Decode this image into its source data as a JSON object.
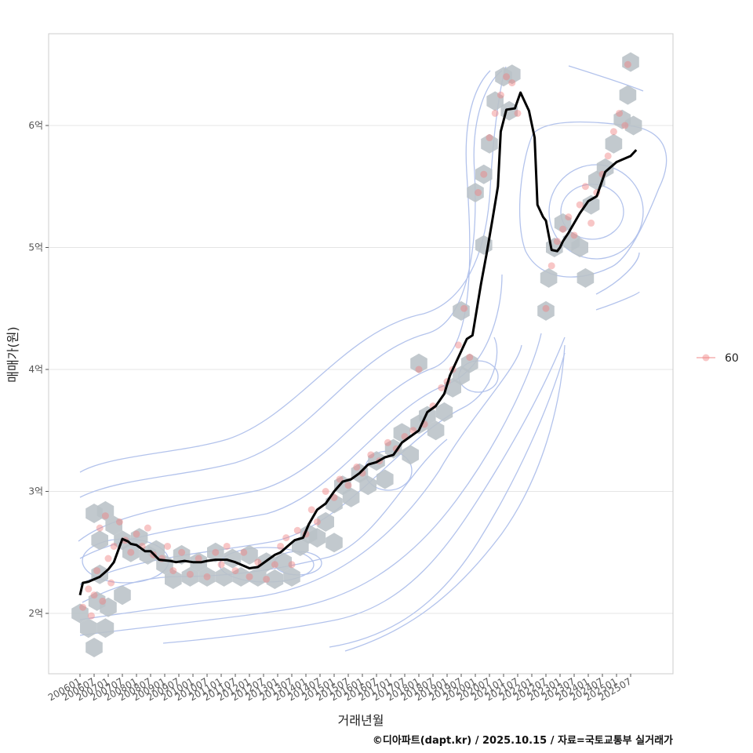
{
  "chart_data": {
    "type": "line",
    "title": "",
    "xlabel": "거래년월",
    "ylabel": "매매가(원)",
    "caption": "©디아파트(dapt.kr) / 2025.10.15 / 자료=국토교통부 실거래가",
    "legend": {
      "position": "right",
      "entries": [
        "60"
      ]
    },
    "x_ticks": [
      "200601",
      "200607",
      "200701",
      "200707",
      "200801",
      "200807",
      "200901",
      "200907",
      "201001",
      "201007",
      "201101",
      "201107",
      "201201",
      "201207",
      "201301",
      "201307",
      "201401",
      "201407",
      "201501",
      "201507",
      "201601",
      "201607",
      "201701",
      "201707",
      "201801",
      "201807",
      "201901",
      "201907",
      "202001",
      "202007",
      "202101",
      "202107",
      "202201",
      "202207",
      "202301",
      "202307",
      "202401",
      "202407",
      "202501",
      "202507"
    ],
    "y_ticks": [
      {
        "value": 2,
        "label": "2억"
      },
      {
        "value": 3,
        "label": "3억"
      },
      {
        "value": 4,
        "label": "4억"
      },
      {
        "value": 5,
        "label": "5억"
      },
      {
        "value": 6,
        "label": "6억"
      }
    ],
    "xlim": [
      2005.8,
      2027.6
    ],
    "ylim": [
      1.48,
      6.75
    ],
    "grid": true,
    "series": [
      {
        "name": "moving-average",
        "color": "#000000",
        "x": [
          2006.0,
          2006.1,
          2006.3,
          2006.5,
          2006.7,
          2007.0,
          2007.2,
          2007.5,
          2007.7,
          2007.8,
          2008.0,
          2008.3,
          2008.5,
          2008.8,
          2009.2,
          2009.4,
          2009.7,
          2010.0,
          2010.3,
          2010.5,
          2010.8,
          2011.2,
          2011.5,
          2011.8,
          2012.0,
          2012.3,
          2012.6,
          2012.9,
          2013.1,
          2013.4,
          2013.6,
          2013.9,
          2014.1,
          2014.4,
          2014.7,
          2015.0,
          2015.3,
          2015.6,
          2015.9,
          2016.2,
          2016.5,
          2016.8,
          2017.1,
          2017.4,
          2017.7,
          2018.0,
          2018.3,
          2018.6,
          2018.9,
          2019.1,
          2019.4,
          2019.7,
          2019.9,
          2020.2,
          2020.4,
          2020.6,
          2020.8,
          2020.9,
          2021.1,
          2021.4,
          2021.6,
          2021.9,
          2022.1,
          2022.2,
          2022.3,
          2022.4,
          2022.5,
          2022.7,
          2022.9,
          2023.0,
          2023.1,
          2023.3,
          2023.5,
          2023.7,
          2024.0,
          2024.3,
          2024.6,
          2024.8,
          2025.0,
          2025.2,
          2025.5,
          2025.7
        ],
        "values": [
          2.15,
          2.25,
          2.26,
          2.28,
          2.3,
          2.36,
          2.42,
          2.61,
          2.59,
          2.57,
          2.56,
          2.51,
          2.51,
          2.44,
          2.43,
          2.42,
          2.43,
          2.42,
          2.42,
          2.43,
          2.44,
          2.44,
          2.42,
          2.39,
          2.37,
          2.38,
          2.43,
          2.48,
          2.5,
          2.56,
          2.6,
          2.62,
          2.73,
          2.85,
          2.9,
          3.0,
          3.08,
          3.1,
          3.15,
          3.22,
          3.24,
          3.28,
          3.3,
          3.4,
          3.45,
          3.5,
          3.65,
          3.7,
          3.8,
          3.95,
          4.1,
          4.25,
          4.28,
          4.7,
          4.95,
          5.22,
          5.5,
          5.95,
          6.13,
          6.14,
          6.27,
          6.12,
          5.9,
          5.35,
          5.3,
          5.25,
          5.22,
          4.98,
          4.97,
          5.0,
          5.05,
          5.12,
          5.2,
          5.28,
          5.38,
          5.42,
          5.62,
          5.66,
          5.7,
          5.72,
          5.75,
          5.8
        ]
      }
    ],
    "scatter_60": [
      [
        2006.1,
        2.05
      ],
      [
        2006.3,
        2.2
      ],
      [
        2006.4,
        1.98
      ],
      [
        2006.5,
        2.15
      ],
      [
        2006.6,
        2.35
      ],
      [
        2006.7,
        2.7
      ],
      [
        2006.8,
        2.1
      ],
      [
        2006.9,
        2.8
      ],
      [
        2007.0,
        2.45
      ],
      [
        2007.1,
        2.25
      ],
      [
        2007.2,
        2.55
      ],
      [
        2007.4,
        2.75
      ],
      [
        2007.6,
        2.6
      ],
      [
        2007.8,
        2.5
      ],
      [
        2008.0,
        2.65
      ],
      [
        2008.2,
        2.55
      ],
      [
        2008.4,
        2.7
      ],
      [
        2008.6,
        2.48
      ],
      [
        2008.9,
        2.45
      ],
      [
        2009.1,
        2.55
      ],
      [
        2009.3,
        2.35
      ],
      [
        2009.6,
        2.5
      ],
      [
        2009.9,
        2.32
      ],
      [
        2010.2,
        2.45
      ],
      [
        2010.5,
        2.3
      ],
      [
        2010.8,
        2.5
      ],
      [
        2011.0,
        2.4
      ],
      [
        2011.2,
        2.55
      ],
      [
        2011.5,
        2.35
      ],
      [
        2011.8,
        2.5
      ],
      [
        2012.0,
        2.3
      ],
      [
        2012.3,
        2.42
      ],
      [
        2012.6,
        2.28
      ],
      [
        2012.9,
        2.4
      ],
      [
        2013.1,
        2.55
      ],
      [
        2013.3,
        2.62
      ],
      [
        2013.5,
        2.4
      ],
      [
        2013.7,
        2.68
      ],
      [
        2014.0,
        2.65
      ],
      [
        2014.2,
        2.85
      ],
      [
        2014.4,
        2.75
      ],
      [
        2014.7,
        3.0
      ],
      [
        2015.0,
        2.95
      ],
      [
        2015.2,
        3.1
      ],
      [
        2015.5,
        3.05
      ],
      [
        2015.8,
        3.2
      ],
      [
        2016.0,
        3.15
      ],
      [
        2016.3,
        3.3
      ],
      [
        2016.6,
        3.25
      ],
      [
        2016.9,
        3.4
      ],
      [
        2017.2,
        3.35
      ],
      [
        2017.5,
        3.45
      ],
      [
        2017.8,
        3.5
      ],
      [
        2018.0,
        4.0
      ],
      [
        2018.2,
        3.55
      ],
      [
        2018.5,
        3.7
      ],
      [
        2018.8,
        3.85
      ],
      [
        2019.0,
        3.9
      ],
      [
        2019.2,
        4.0
      ],
      [
        2019.4,
        4.2
      ],
      [
        2019.6,
        4.5
      ],
      [
        2019.8,
        4.1
      ],
      [
        2020.1,
        5.45
      ],
      [
        2020.3,
        5.6
      ],
      [
        2020.5,
        5.9
      ],
      [
        2020.7,
        6.1
      ],
      [
        2020.9,
        6.25
      ],
      [
        2021.1,
        6.4
      ],
      [
        2021.3,
        6.35
      ],
      [
        2021.5,
        6.1
      ],
      [
        2022.5,
        4.5
      ],
      [
        2022.7,
        4.85
      ],
      [
        2022.9,
        5.05
      ],
      [
        2023.1,
        5.15
      ],
      [
        2023.3,
        5.25
      ],
      [
        2023.5,
        5.1
      ],
      [
        2023.7,
        5.35
      ],
      [
        2023.9,
        5.5
      ],
      [
        2024.1,
        5.2
      ],
      [
        2024.3,
        5.45
      ],
      [
        2024.5,
        5.6
      ],
      [
        2024.7,
        5.75
      ],
      [
        2024.9,
        5.95
      ],
      [
        2025.1,
        6.1
      ],
      [
        2025.3,
        6.0
      ],
      [
        2025.4,
        6.5
      ]
    ],
    "hexbin_centers": [
      [
        2006.0,
        2.0
      ],
      [
        2006.3,
        1.88
      ],
      [
        2006.5,
        1.72
      ],
      [
        2006.6,
        2.1
      ],
      [
        2006.9,
        1.88
      ],
      [
        2006.7,
        2.32
      ],
      [
        2007.0,
        2.05
      ],
      [
        2006.5,
        2.82
      ],
      [
        2006.9,
        2.84
      ],
      [
        2006.7,
        2.6
      ],
      [
        2007.2,
        2.72
      ],
      [
        2007.5,
        2.6
      ],
      [
        2007.5,
        2.15
      ],
      [
        2007.8,
        2.5
      ],
      [
        2008.1,
        2.62
      ],
      [
        2008.4,
        2.48
      ],
      [
        2008.7,
        2.52
      ],
      [
        2009.0,
        2.4
      ],
      [
        2009.3,
        2.28
      ],
      [
        2009.6,
        2.48
      ],
      [
        2009.9,
        2.3
      ],
      [
        2010.2,
        2.42
      ],
      [
        2010.5,
        2.3
      ],
      [
        2010.8,
        2.5
      ],
      [
        2011.1,
        2.3
      ],
      [
        2011.4,
        2.45
      ],
      [
        2011.7,
        2.3
      ],
      [
        2012.0,
        2.48
      ],
      [
        2012.3,
        2.3
      ],
      [
        2012.6,
        2.42
      ],
      [
        2012.9,
        2.28
      ],
      [
        2013.2,
        2.42
      ],
      [
        2013.5,
        2.3
      ],
      [
        2013.8,
        2.55
      ],
      [
        2014.1,
        2.65
      ],
      [
        2014.4,
        2.62
      ],
      [
        2014.7,
        2.75
      ],
      [
        2015.0,
        2.58
      ],
      [
        2015.0,
        2.9
      ],
      [
        2015.3,
        3.05
      ],
      [
        2015.6,
        2.95
      ],
      [
        2015.9,
        3.15
      ],
      [
        2016.2,
        3.05
      ],
      [
        2016.5,
        3.25
      ],
      [
        2016.8,
        3.1
      ],
      [
        2017.1,
        3.35
      ],
      [
        2017.4,
        3.48
      ],
      [
        2017.7,
        3.3
      ],
      [
        2018.0,
        3.55
      ],
      [
        2018.3,
        3.62
      ],
      [
        2018.6,
        3.5
      ],
      [
        2018.0,
        4.05
      ],
      [
        2018.9,
        3.65
      ],
      [
        2019.2,
        3.85
      ],
      [
        2019.5,
        3.95
      ],
      [
        2019.8,
        4.05
      ],
      [
        2019.5,
        4.48
      ],
      [
        2020.0,
        5.45
      ],
      [
        2020.3,
        5.6
      ],
      [
        2020.5,
        5.85
      ],
      [
        2020.7,
        6.2
      ],
      [
        2021.0,
        6.4
      ],
      [
        2021.3,
        6.42
      ],
      [
        2021.2,
        6.12
      ],
      [
        2020.3,
        5.02
      ],
      [
        2022.5,
        4.48
      ],
      [
        2022.6,
        4.75
      ],
      [
        2022.8,
        5.0
      ],
      [
        2023.1,
        5.2
      ],
      [
        2023.4,
        5.05
      ],
      [
        2023.7,
        5.0
      ],
      [
        2023.9,
        4.75
      ],
      [
        2024.1,
        5.35
      ],
      [
        2024.3,
        5.55
      ],
      [
        2024.6,
        5.65
      ],
      [
        2024.9,
        5.85
      ],
      [
        2025.2,
        6.05
      ],
      [
        2025.4,
        6.25
      ],
      [
        2025.6,
        6.0
      ],
      [
        2025.5,
        6.52
      ]
    ]
  },
  "colors": {
    "line": "#000000",
    "point": "#f08080",
    "hex": "#b9c1c7",
    "contour": "#b3c3ec",
    "grid": "#e5e5e5",
    "panel_border": "#cccccc"
  }
}
